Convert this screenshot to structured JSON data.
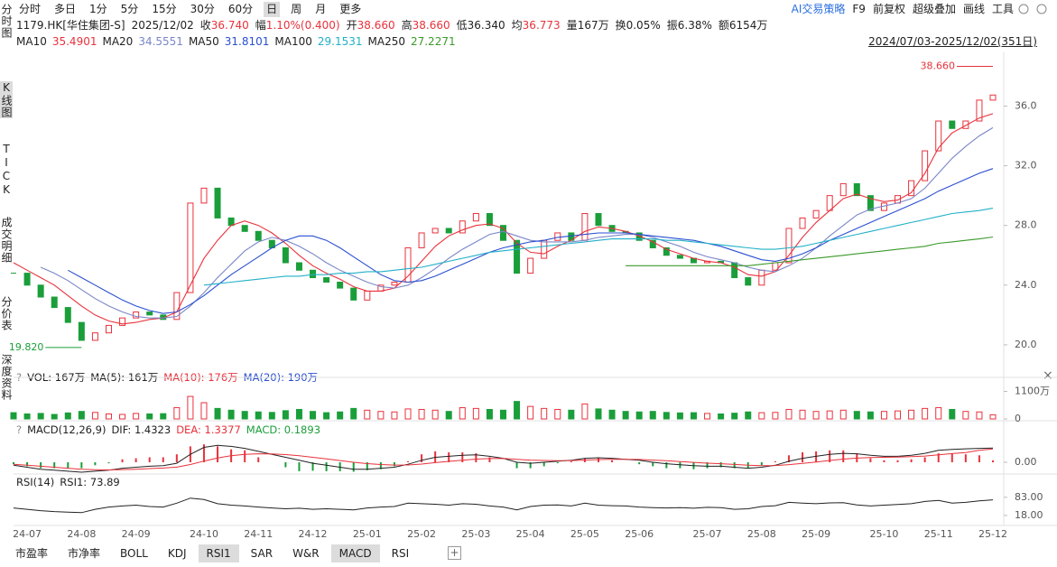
{
  "toolbar": {
    "periods": [
      "分时",
      "多日",
      "1分",
      "5分",
      "15分",
      "30分",
      "60分",
      "日",
      "周",
      "月",
      "更多"
    ],
    "active": 7,
    "tools": [
      "AI交易策略",
      "F9",
      "前复权",
      "超级叠加",
      "画线",
      "工具"
    ]
  },
  "sidebar": {
    "items": [
      "分时图",
      "K线图",
      "TICK",
      "成交明细",
      "分价表",
      "深度资料"
    ],
    "active": 1
  },
  "info": [
    {
      "text": "1179.HK[华住集团-S]"
    },
    {
      "text": "2025/12/02"
    },
    {
      "label": "收",
      "value": "36.740",
      "color": "#e8323c"
    },
    {
      "label": "幅",
      "value": "1.10%(0.400)",
      "color": "#e8323c"
    },
    {
      "label": "开",
      "value": "38.660",
      "color": "#e8323c"
    },
    {
      "label": "高",
      "value": "38.660",
      "color": "#e8323c"
    },
    {
      "label": "低",
      "value": "36.340",
      "color": "#222222"
    },
    {
      "label": "均",
      "value": "36.773",
      "color": "#e8323c"
    },
    {
      "label": "量",
      "value": "167万",
      "color": "#222222"
    },
    {
      "label": "换",
      "value": "0.05%",
      "color": "#222222"
    },
    {
      "label": "振",
      "value": "6.38%",
      "color": "#222222"
    },
    {
      "label": "额",
      "value": "6154万",
      "color": "#222222"
    }
  ],
  "tabs": {
    "items": [
      "市盈率",
      "市净率",
      "BOLL",
      "KDJ",
      "RSI1",
      "SAR",
      "W&R",
      "MACD",
      "RSI"
    ],
    "active": [
      4,
      7
    ]
  },
  "chart_data": [
    {
      "type": "candlestick",
      "range": "2024/07/03-2025/12/02(351日)",
      "up_color": "#e8323c",
      "down_color": "#1a9e3a",
      "categories": [
        null,
        "24-07",
        null,
        null,
        null,
        "24-08",
        null,
        null,
        null,
        "24-09",
        null,
        null,
        null,
        null,
        "24-10",
        null,
        null,
        null,
        "24-11",
        null,
        null,
        null,
        "24-12",
        null,
        null,
        null,
        "25-01",
        null,
        null,
        null,
        "25-02",
        null,
        null,
        null,
        "25-03",
        null,
        null,
        null,
        "25-04",
        null,
        null,
        null,
        "25-05",
        null,
        null,
        null,
        "25-06",
        null,
        null,
        null,
        null,
        "25-07",
        null,
        null,
        null,
        "25-08",
        null,
        null,
        null,
        "25-09",
        null,
        null,
        null,
        null,
        "25-10",
        null,
        null,
        null,
        "25-11",
        null,
        null,
        null,
        "25-12"
      ],
      "closes": [
        24.8,
        24.0,
        23.2,
        22.5,
        21.5,
        20.3,
        20.8,
        21.3,
        21.8,
        22.2,
        22.0,
        21.7,
        23.5,
        29.5,
        30.5,
        28.5,
        28.0,
        27.6,
        27.0,
        26.5,
        25.5,
        25.0,
        24.5,
        24.2,
        23.8,
        23.0,
        23.6,
        24.0,
        24.2,
        26.5,
        27.5,
        27.8,
        27.5,
        28.3,
        28.8,
        28.0,
        27.0,
        24.8,
        25.8,
        27.0,
        27.5,
        27.0,
        28.8,
        28.0,
        27.6,
        27.5,
        27.0,
        26.5,
        26.0,
        25.8,
        25.5,
        25.6,
        25.5,
        24.5,
        24.0,
        25.0,
        25.5,
        27.8,
        28.5,
        29.0,
        30.0,
        30.8,
        30.0,
        29.0,
        29.5,
        30.0,
        31.0,
        33.0,
        35.0,
        34.5,
        35.0,
        36.4,
        36.74
      ],
      "series": [
        {
          "name": "MA10",
          "legend_value": "35.4901",
          "color": "#e8323c",
          "values": [
            25.5,
            25.0,
            24.5,
            24.0,
            23.3,
            22.6,
            22.0,
            21.6,
            21.4,
            21.5,
            21.7,
            21.8,
            22.2,
            24.0,
            25.8,
            27.0,
            28.0,
            28.3,
            28.0,
            27.5,
            26.8,
            26.0,
            25.3,
            24.8,
            24.4,
            23.9,
            23.6,
            23.6,
            23.8,
            24.6,
            25.6,
            26.6,
            27.3,
            27.7,
            28.0,
            28.1,
            27.8,
            26.8,
            26.2,
            26.1,
            26.6,
            27.0,
            27.6,
            27.9,
            27.8,
            27.6,
            27.3,
            26.9,
            26.4,
            26.1,
            25.8,
            25.6,
            25.5,
            25.2,
            24.7,
            24.6,
            24.9,
            26.0,
            27.2,
            28.2,
            29.0,
            29.8,
            30.1,
            29.8,
            29.6,
            29.7,
            30.2,
            31.5,
            33.2,
            34.2,
            34.7,
            35.2,
            35.4901
          ]
        },
        {
          "name": "MA20",
          "legend_value": "34.5551",
          "color": "#7a86c8",
          "values": [
            null,
            null,
            25.2,
            24.8,
            24.3,
            23.7,
            23.1,
            22.6,
            22.2,
            21.9,
            21.8,
            21.8,
            21.9,
            22.6,
            23.5,
            24.5,
            25.4,
            26.3,
            26.9,
            27.2,
            27.0,
            26.6,
            26.1,
            25.5,
            25.0,
            24.6,
            24.2,
            23.9,
            23.8,
            24.0,
            24.5,
            25.1,
            25.8,
            26.4,
            26.9,
            27.4,
            27.6,
            27.3,
            27.0,
            26.9,
            26.9,
            26.9,
            27.0,
            27.2,
            27.3,
            27.4,
            27.4,
            27.2,
            26.9,
            26.6,
            26.2,
            25.9,
            25.7,
            25.5,
            25.2,
            25.0,
            24.9,
            25.3,
            25.8,
            26.5,
            27.3,
            28.0,
            28.7,
            29.1,
            29.3,
            29.5,
            29.8,
            30.5,
            31.5,
            32.5,
            33.3,
            34.0,
            34.5551
          ]
        },
        {
          "name": "MA50",
          "legend_value": "31.8101",
          "color": "#2a4fd0",
          "values": [
            null,
            null,
            null,
            null,
            25.0,
            24.5,
            24.0,
            23.5,
            23.0,
            22.6,
            22.3,
            22.1,
            22.2,
            22.7,
            23.3,
            24.0,
            24.7,
            25.3,
            25.9,
            26.5,
            27.0,
            27.3,
            27.3,
            27.0,
            26.5,
            25.9,
            25.3,
            24.7,
            24.3,
            24.2,
            24.3,
            24.6,
            25.0,
            25.4,
            25.8,
            26.2,
            26.5,
            26.7,
            26.9,
            27.0,
            27.2,
            27.3,
            27.4,
            27.5,
            27.5,
            27.5,
            27.4,
            27.3,
            27.2,
            27.1,
            27.0,
            26.8,
            26.6,
            26.3,
            26.0,
            25.7,
            25.6,
            25.8,
            26.1,
            26.5,
            27.0,
            27.4,
            27.8,
            28.2,
            28.6,
            29.0,
            29.4,
            29.8,
            30.3,
            30.7,
            31.1,
            31.5,
            31.8101
          ]
        },
        {
          "name": "MA100",
          "legend_value": "29.1531",
          "color": "#22b0c8",
          "values": [
            null,
            null,
            null,
            null,
            null,
            null,
            null,
            null,
            null,
            null,
            null,
            null,
            null,
            null,
            24.0,
            24.1,
            24.2,
            24.3,
            24.4,
            24.5,
            24.6,
            24.6,
            24.7,
            24.7,
            24.8,
            24.8,
            24.9,
            24.9,
            25.0,
            25.1,
            25.2,
            25.4,
            25.6,
            25.8,
            26.0,
            26.2,
            26.3,
            26.4,
            26.5,
            26.6,
            26.7,
            26.8,
            26.9,
            27.0,
            27.1,
            27.1,
            27.1,
            27.1,
            27.0,
            27.0,
            26.9,
            26.8,
            26.7,
            26.6,
            26.5,
            26.4,
            26.4,
            26.5,
            26.6,
            26.8,
            27.0,
            27.2,
            27.4,
            27.6,
            27.8,
            28.0,
            28.2,
            28.4,
            28.6,
            28.8,
            28.9,
            29.0,
            29.1531
          ]
        },
        {
          "name": "MA250",
          "legend_value": "27.2271",
          "color": "#3a9a2a",
          "values": [
            null,
            null,
            null,
            null,
            null,
            null,
            null,
            null,
            null,
            null,
            null,
            null,
            null,
            null,
            null,
            null,
            null,
            null,
            null,
            null,
            null,
            null,
            null,
            null,
            null,
            null,
            null,
            null,
            null,
            null,
            null,
            null,
            null,
            null,
            null,
            null,
            null,
            null,
            null,
            null,
            null,
            null,
            null,
            null,
            null,
            25.3,
            25.3,
            25.3,
            25.3,
            25.3,
            25.3,
            25.3,
            25.3,
            25.3,
            25.3,
            25.4,
            25.5,
            25.6,
            25.7,
            25.8,
            25.9,
            26.0,
            26.1,
            26.2,
            26.3,
            26.4,
            26.5,
            26.6,
            26.8,
            26.9,
            27.0,
            27.1,
            27.2271
          ]
        }
      ],
      "ylim": [
        18.3,
        39.6
      ],
      "yticks": [
        {
          "value": 36,
          "label": "36.0"
        },
        {
          "value": 32,
          "label": "32.0"
        },
        {
          "value": 28,
          "label": "28.0"
        },
        {
          "value": 24,
          "label": "24.0"
        },
        {
          "value": 20,
          "label": "20.0"
        }
      ],
      "annotations": [
        {
          "label": "38.660",
          "value": 38.66,
          "index": 72,
          "color": "#e8323c"
        },
        {
          "label": "19.820",
          "value": 19.82,
          "index": 5,
          "color": "#1a9e3a"
        }
      ]
    },
    {
      "type": "bar",
      "legend": [
        {
          "text": "VOL: 167万",
          "color": "#222222"
        },
        {
          "text": "MA(5): 161万",
          "color": "#222222"
        },
        {
          "text": "MA(10): 176万",
          "color": "#e8323c"
        },
        {
          "text": "MA(20): 190万",
          "color": "#2a4fd0"
        }
      ],
      "values": [
        250,
        200,
        220,
        180,
        240,
        300,
        260,
        200,
        180,
        220,
        200,
        210,
        450,
        900,
        650,
        420,
        350,
        300,
        280,
        260,
        330,
        380,
        300,
        250,
        280,
        420,
        350,
        300,
        280,
        400,
        380,
        350,
        300,
        450,
        420,
        380,
        350,
        700,
        500,
        420,
        380,
        350,
        600,
        400,
        350,
        300,
        280,
        300,
        260,
        240,
        250,
        220,
        200,
        230,
        280,
        250,
        260,
        380,
        350,
        300,
        320,
        350,
        300,
        280,
        300,
        320,
        350,
        420,
        450,
        380,
        300,
        280,
        167
      ],
      "ylim": [
        0,
        1300
      ],
      "yticks": [
        0,
        {
          "value": 1100,
          "label": "1100万"
        }
      ]
    },
    {
      "type": "macd",
      "legend": [
        {
          "text": "MACD(12,26,9)",
          "color": "#222222"
        },
        {
          "text": "DIF: 1.4323",
          "color": "#222222"
        },
        {
          "text": "DEA: 1.3377",
          "color": "#e8323c"
        },
        {
          "text": "MACD: 0.1893",
          "color": "#1a9e3a"
        }
      ],
      "dif": [
        -0.3,
        -0.5,
        -0.7,
        -0.8,
        -0.9,
        -1.0,
        -0.9,
        -0.8,
        -0.6,
        -0.5,
        -0.4,
        -0.35,
        -0.1,
        0.8,
        1.5,
        1.7,
        1.6,
        1.4,
        1.1,
        0.8,
        0.5,
        0.2,
        -0.1,
        -0.3,
        -0.5,
        -0.7,
        -0.7,
        -0.6,
        -0.5,
        -0.2,
        0.2,
        0.5,
        0.6,
        0.7,
        0.75,
        0.6,
        0.4,
        0.0,
        -0.1,
        0.0,
        0.1,
        0.2,
        0.4,
        0.45,
        0.4,
        0.3,
        0.2,
        0.0,
        -0.15,
        -0.25,
        -0.35,
        -0.4,
        -0.4,
        -0.5,
        -0.6,
        -0.5,
        -0.3,
        0.1,
        0.4,
        0.6,
        0.8,
        0.9,
        0.85,
        0.7,
        0.6,
        0.6,
        0.7,
        0.9,
        1.2,
        1.3,
        1.35,
        1.4,
        1.4323
      ],
      "dea": [
        -0.2,
        -0.3,
        -0.4,
        -0.5,
        -0.6,
        -0.7,
        -0.75,
        -0.77,
        -0.74,
        -0.7,
        -0.64,
        -0.58,
        -0.49,
        -0.23,
        0.12,
        0.43,
        0.66,
        0.8,
        0.85,
        0.84,
        0.77,
        0.65,
        0.5,
        0.34,
        0.17,
        0.0,
        -0.14,
        -0.23,
        -0.28,
        -0.27,
        -0.18,
        -0.04,
        0.09,
        0.21,
        0.32,
        0.37,
        0.38,
        0.3,
        0.22,
        0.18,
        0.16,
        0.17,
        0.22,
        0.27,
        0.3,
        0.3,
        0.28,
        0.22,
        0.15,
        0.07,
        -0.01,
        -0.09,
        -0.15,
        -0.22,
        -0.3,
        -0.34,
        -0.33,
        -0.24,
        -0.11,
        0.03,
        0.18,
        0.32,
        0.42,
        0.48,
        0.5,
        0.52,
        0.56,
        0.63,
        0.75,
        0.87,
        0.97,
        1.2,
        1.3377
      ],
      "histogram": [
        -0.2,
        -0.4,
        -0.6,
        -0.6,
        -0.6,
        -0.6,
        -0.3,
        -0.1,
        0.3,
        0.4,
        0.5,
        0.5,
        0.8,
        1.6,
        1.8,
        1.6,
        1.3,
        1.2,
        0.5,
        0.0,
        -0.5,
        -0.9,
        -0.85,
        -0.9,
        -0.9,
        -0.95,
        -0.8,
        -0.7,
        -0.4,
        0.1,
        0.8,
        1.1,
        1.0,
        1.0,
        0.9,
        0.5,
        0.0,
        -0.6,
        -0.6,
        -0.4,
        -0.1,
        0.1,
        0.4,
        0.4,
        0.2,
        0.0,
        -0.2,
        -0.4,
        -0.6,
        -0.6,
        -0.7,
        -0.6,
        -0.5,
        -0.6,
        -0.6,
        -0.3,
        0.1,
        0.7,
        1.0,
        1.1,
        1.2,
        1.2,
        0.9,
        0.4,
        0.2,
        0.2,
        0.3,
        0.5,
        0.9,
        0.9,
        0.8,
        0.7,
        0.1893
      ],
      "ylim": [
        -1.0,
        2.36
      ],
      "yticks": [
        {
          "value": 0,
          "label": "0.00"
        }
      ]
    },
    {
      "type": "line",
      "color": "#222222",
      "legend": [
        {
          "text": "RSI(14)",
          "color": "#222222"
        },
        {
          "text": "RSI1: 73.89",
          "color": "#222222"
        }
      ],
      "values": [
        45,
        40,
        35,
        32,
        30,
        28,
        40,
        48,
        52,
        55,
        50,
        48,
        62,
        80,
        75,
        60,
        55,
        52,
        48,
        45,
        42,
        44,
        40,
        42,
        40,
        38,
        45,
        48,
        50,
        62,
        60,
        58,
        55,
        60,
        58,
        52,
        48,
        38,
        50,
        55,
        56,
        52,
        62,
        55,
        53,
        52,
        48,
        46,
        45,
        46,
        44,
        47,
        46,
        40,
        42,
        50,
        53,
        65,
        62,
        60,
        63,
        64,
        56,
        52,
        55,
        57,
        60,
        68,
        72,
        62,
        65,
        70,
        73.89
      ],
      "ylim": [
        -5,
        118
      ],
      "yticks": [
        {
          "value": 83,
          "label": "83.00"
        },
        {
          "value": 18,
          "label": "18.00"
        }
      ]
    }
  ]
}
